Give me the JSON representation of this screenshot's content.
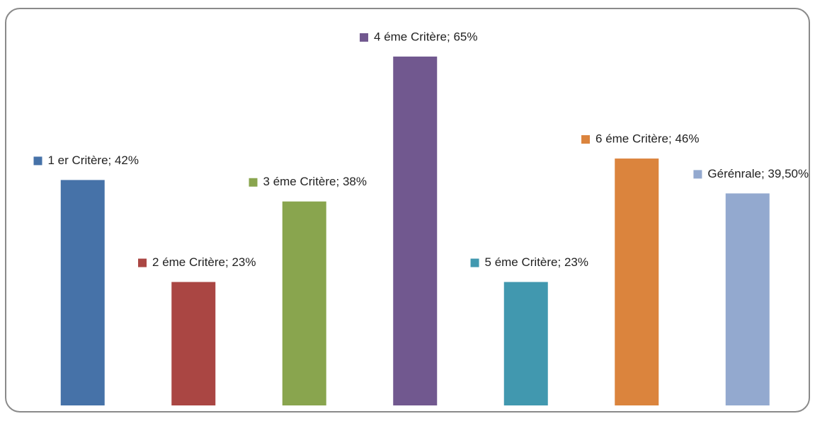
{
  "chart_data": {
    "type": "bar",
    "values": [
      42,
      23,
      38,
      65,
      23,
      46,
      39.5
    ],
    "value_labels": [
      "1 er  Critère; 42%",
      "2 éme Critère; 23%",
      "3 éme Critère; 38%",
      "4 éme Critère; 65%",
      "5 éme Critère; 23%",
      "6 éme Critère; 46%",
      "Gérénrale; 39,50%"
    ],
    "colors": [
      "#4672a8",
      "#aa4643",
      "#89a54e",
      "#71588f",
      "#4198af",
      "#db843d",
      "#93a9cf"
    ],
    "ylim": [
      0,
      70
    ],
    "grid": false
  }
}
